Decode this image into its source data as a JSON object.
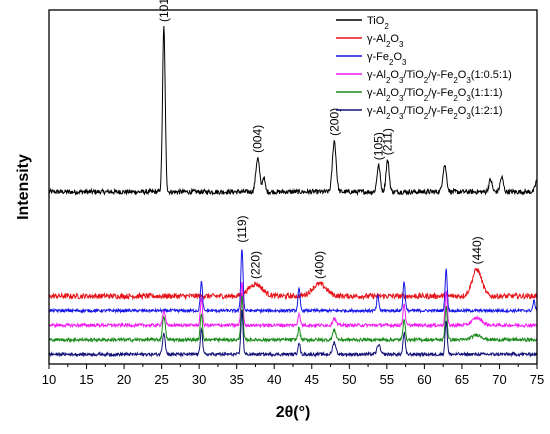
{
  "chart_data": {
    "type": "line",
    "xlabel": "2θ(°)",
    "ylabel": "Intensity",
    "xlim": [
      10,
      75
    ],
    "xticks": [
      "10",
      "15",
      "20",
      "25",
      "30",
      "35",
      "40",
      "45",
      "50",
      "55",
      "60",
      "65",
      "70",
      "75"
    ],
    "legend_position": "top-right",
    "series": [
      {
        "name": "TiO2",
        "color": "#000000",
        "baseline": 55,
        "noise": 2,
        "peaks": [
          [
            25.3,
            68,
            0.25
          ],
          [
            37.8,
            14,
            0.35
          ],
          [
            38.6,
            6,
            0.25
          ],
          [
            48.0,
            21,
            0.35
          ],
          [
            53.9,
            11,
            0.3
          ],
          [
            55.1,
            13,
            0.3
          ],
          [
            62.7,
            11,
            0.35
          ],
          [
            68.8,
            5,
            0.3
          ],
          [
            70.3,
            6,
            0.3
          ],
          [
            75.0,
            5,
            0.3
          ]
        ],
        "bumps": []
      },
      {
        "name": "γ-Al2O3",
        "color": "#e8141b",
        "baseline": 12,
        "noise": 2.2,
        "peaks": [],
        "bumps": [
          [
            37.5,
            5,
            1.3
          ],
          [
            46.0,
            5,
            1.3
          ],
          [
            67.0,
            11,
            0.9
          ]
        ]
      },
      {
        "name": "γ-Fe2O3",
        "color": "#1616e8",
        "baseline": 6,
        "noise": 1.2,
        "peaks": [
          [
            30.3,
            12,
            0.2
          ],
          [
            35.7,
            26,
            0.2
          ],
          [
            43.3,
            9,
            0.2
          ],
          [
            53.8,
            6,
            0.2
          ],
          [
            57.3,
            12,
            0.2
          ],
          [
            62.9,
            17,
            0.2
          ],
          [
            74.6,
            4,
            0.2
          ]
        ],
        "bumps": []
      },
      {
        "name": "γ-Al2O3/TiO2/γ-Fe2O3(1:0.5:1)",
        "color": "#f01cf0",
        "baseline": 0,
        "noise": 1.3,
        "peaks": [
          [
            25.3,
            6,
            0.25
          ],
          [
            30.3,
            11,
            0.2
          ],
          [
            35.7,
            18,
            0.2
          ],
          [
            43.3,
            5,
            0.2
          ],
          [
            48.0,
            3,
            0.3
          ],
          [
            57.3,
            9,
            0.2
          ],
          [
            62.9,
            14,
            0.2
          ]
        ],
        "bumps": [
          [
            67.0,
            3,
            0.9
          ]
        ]
      },
      {
        "name": "γ-Al2O3/TiO2/γ-Fe2O3(1:1:1)",
        "color": "#1a8a1a",
        "baseline": -6,
        "noise": 1.3,
        "peaks": [
          [
            25.3,
            10,
            0.25
          ],
          [
            30.3,
            11,
            0.2
          ],
          [
            35.7,
            18,
            0.2
          ],
          [
            43.3,
            5,
            0.2
          ],
          [
            48.0,
            4,
            0.3
          ],
          [
            57.3,
            9,
            0.2
          ],
          [
            62.9,
            14,
            0.2
          ]
        ],
        "bumps": [
          [
            67.0,
            2,
            0.9
          ]
        ]
      },
      {
        "name": "γ-Al2O3/TiO2/γ-Fe2O3(1:2:1)",
        "color": "#121277",
        "baseline": -12,
        "noise": 1.3,
        "peaks": [
          [
            25.3,
            9,
            0.25
          ],
          [
            30.3,
            11,
            0.2
          ],
          [
            35.7,
            18,
            0.2
          ],
          [
            43.3,
            5,
            0.2
          ],
          [
            48.0,
            5,
            0.3
          ],
          [
            53.9,
            4,
            0.3
          ],
          [
            57.3,
            9,
            0.2
          ],
          [
            62.9,
            14,
            0.2
          ]
        ],
        "bumps": []
      }
    ],
    "peak_labels": [
      {
        "text": "(101)",
        "x": 25.3,
        "series": 0
      },
      {
        "text": "(119)",
        "x": 35.7,
        "series": 2
      },
      {
        "text": "(004)",
        "x": 37.8,
        "series": 0
      },
      {
        "text": "(200)",
        "x": 48.0,
        "series": 0
      },
      {
        "text": "(105)",
        "x": 53.9,
        "series": 0
      },
      {
        "text": "(211)",
        "x": 55.1,
        "series": 0
      },
      {
        "text": "(220)",
        "x": 37.5,
        "series": 1
      },
      {
        "text": "(400)",
        "x": 46.0,
        "series": 1
      },
      {
        "text": "(440)",
        "x": 67.0,
        "series": 1
      }
    ]
  }
}
